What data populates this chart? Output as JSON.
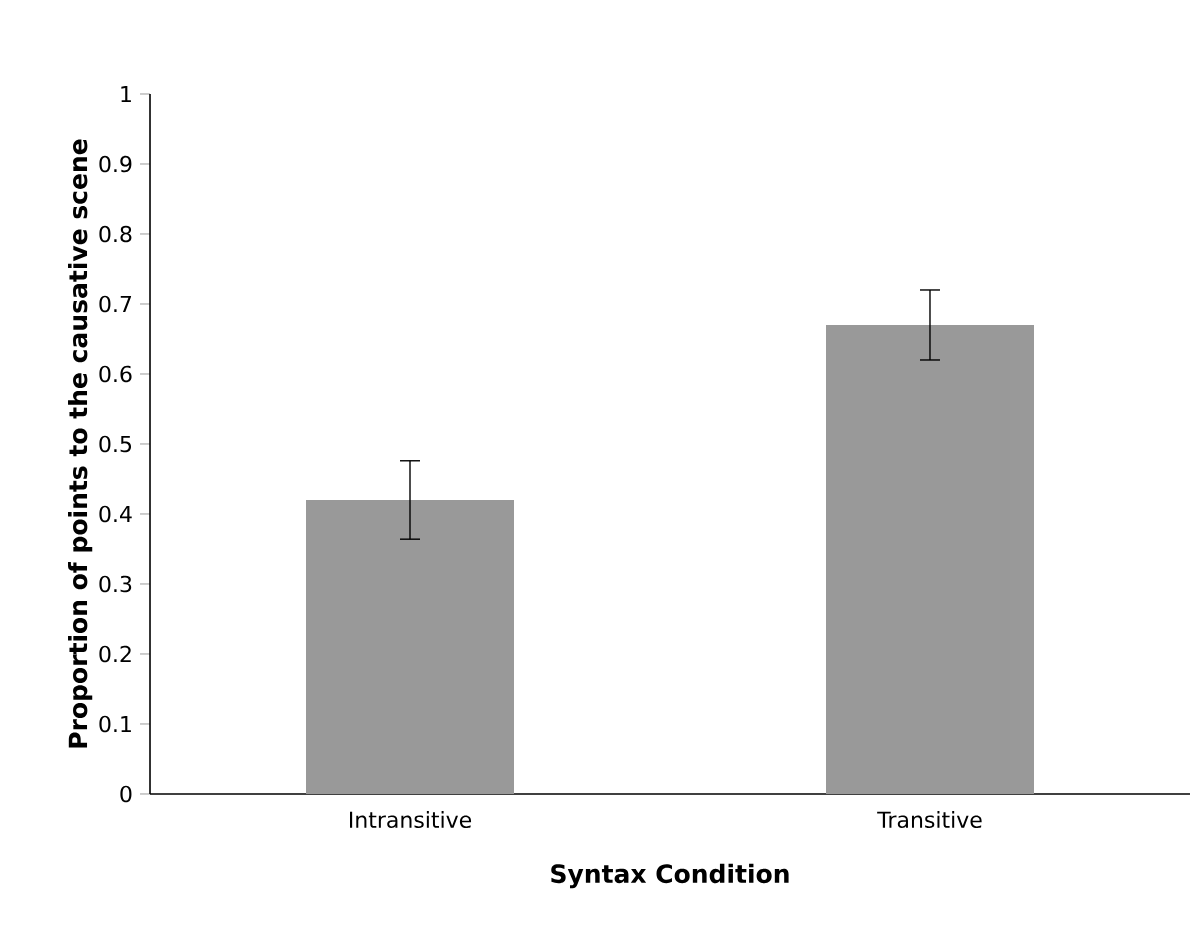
{
  "chart_data": {
    "type": "bar",
    "xlabel": "Syntax Condition",
    "ylabel": "Proportion of points to the causative scene",
    "categories": [
      "Intransitive",
      "Transitive"
    ],
    "values": [
      0.42,
      0.67
    ],
    "errors": [
      0.056,
      0.05
    ],
    "color": "#999999",
    "ylim": [
      0,
      1
    ],
    "yticks": [
      0,
      0.1,
      0.2,
      0.3,
      0.4,
      0.5,
      0.6,
      0.7,
      0.8,
      0.9,
      1
    ],
    "grid": false
  }
}
